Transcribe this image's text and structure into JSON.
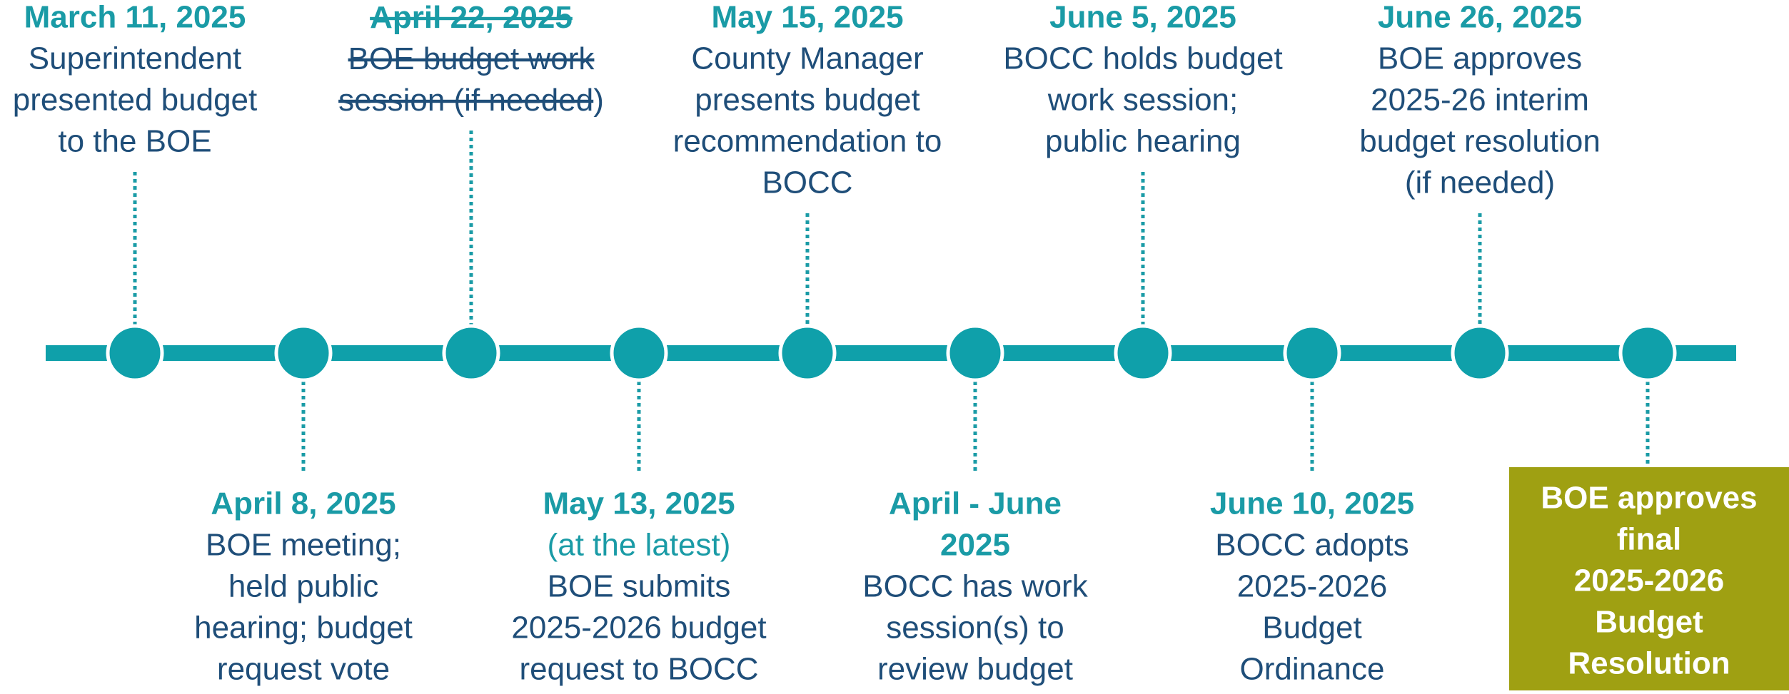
{
  "events": [
    {
      "date": "March 11, 2025",
      "lines": [
        "Superintendent",
        "presented budget",
        "to the BOE"
      ]
    },
    {
      "date": "April 8, 2025",
      "lines": [
        "BOE meeting;",
        "held public",
        "hearing; budget",
        "request vote"
      ]
    },
    {
      "date": {
        "text": "April 22, 2025",
        "strike": true
      },
      "lines": [
        {
          "text": "BOE budget work",
          "strike": true
        },
        [
          {
            "text": "session (if needed",
            "strike": true
          },
          ")"
        ]
      ]
    },
    {
      "date": "May 13, 2025",
      "note": "(at the latest)",
      "lines": [
        "BOE submits",
        "2025-2026 budget",
        "request to BOCC"
      ]
    },
    {
      "date": "May 15, 2025",
      "lines": [
        "County Manager",
        "presents budget",
        "recommendation to",
        "BOCC"
      ]
    },
    {
      "date": [
        "April - June",
        "2025"
      ],
      "lines": [
        "BOCC has work",
        "session(s) to",
        "review budget"
      ]
    },
    {
      "date": "June 5, 2025",
      "lines": [
        "BOCC holds budget",
        "work session;",
        "public hearing"
      ]
    },
    {
      "date": "June 10, 2025",
      "lines": [
        "BOCC adopts",
        "2025-2026",
        "Budget",
        "Ordinance"
      ]
    },
    {
      "date": "June 26, 2025",
      "lines": [
        "BOE approves",
        "2025-26 interim",
        "budget resolution",
        "(if needed)"
      ]
    }
  ],
  "final": {
    "lines": [
      "BOE approves",
      "final",
      "2025-2026",
      "Budget",
      "Resolution"
    ]
  }
}
